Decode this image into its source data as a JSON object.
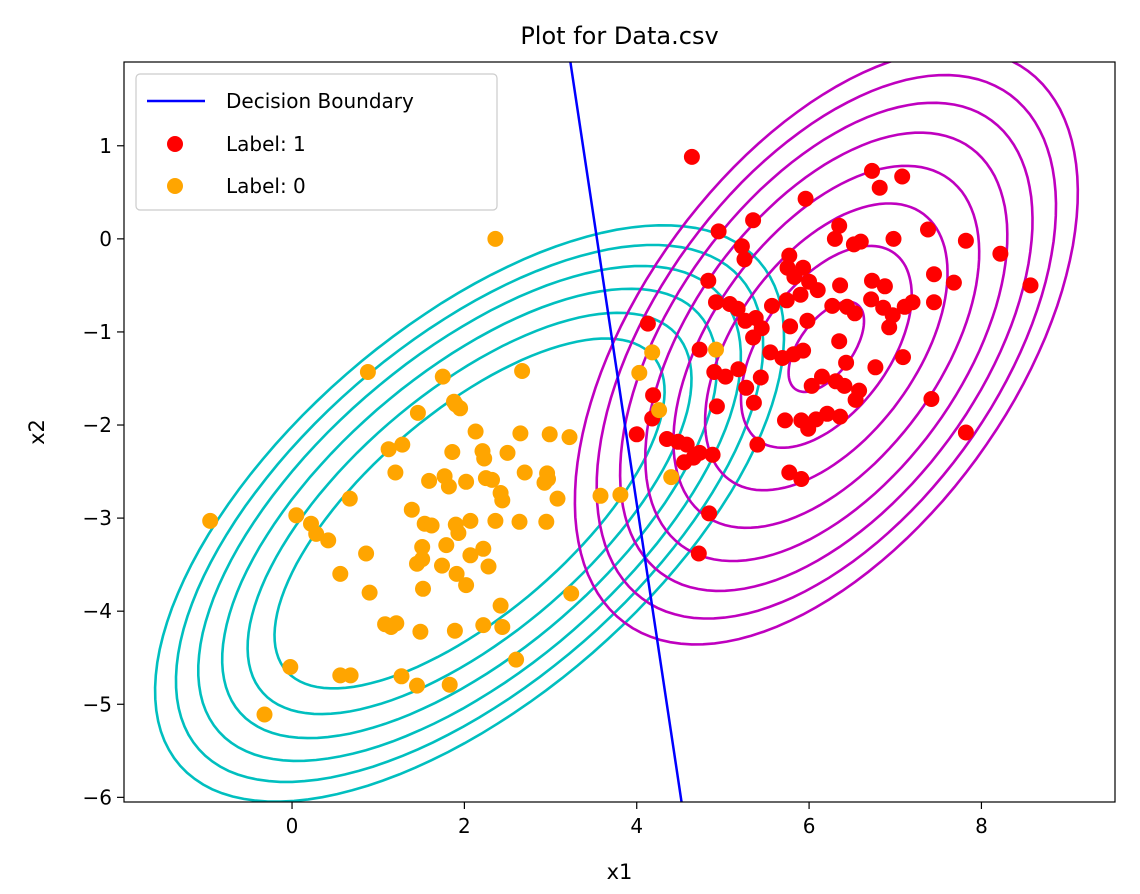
{
  "chart_data": {
    "type": "scatter",
    "title": "Plot for Data.csv",
    "xlabel": "x1",
    "ylabel": "x2",
    "xlim": [
      -1.95,
      9.55
    ],
    "ylim": [
      -6.05,
      1.9
    ],
    "xticks": [
      0,
      2,
      4,
      6,
      8
    ],
    "yticks": [
      -6,
      -5,
      -4,
      -3,
      -2,
      -1,
      0,
      1
    ],
    "grid": false,
    "legend_position": "top-left",
    "legend": [
      {
        "label": "Decision Boundary",
        "kind": "line",
        "color": "#0000ff"
      },
      {
        "label": "Label: 1",
        "kind": "marker",
        "color": "#ff0000"
      },
      {
        "label": "Label: 0",
        "kind": "marker",
        "color": "#ffa500"
      }
    ],
    "decision_boundary": {
      "color": "#0000ff",
      "points": [
        [
          3.23,
          1.9
        ],
        [
          4.52,
          -6.05
        ]
      ]
    },
    "contours": [
      {
        "name": "label-0-gaussian",
        "color": "#00bfbf",
        "center": [
          2.06,
          -2.95
        ],
        "levels": [
          {
            "rx": 2.72,
            "ry": 1.12,
            "angle_deg": 37.5
          },
          {
            "rx": 3.08,
            "ry": 1.34,
            "angle_deg": 37.5
          },
          {
            "rx": 3.42,
            "ry": 1.54,
            "angle_deg": 37.5
          },
          {
            "rx": 3.74,
            "ry": 1.73,
            "angle_deg": 37.5
          },
          {
            "rx": 4.04,
            "ry": 1.9,
            "angle_deg": 37.5
          },
          {
            "rx": 4.32,
            "ry": 2.06,
            "angle_deg": 37.5
          }
        ]
      },
      {
        "name": "label-1-gaussian",
        "color": "#bf00bf",
        "center": [
          6.2,
          -1.16
        ],
        "levels": [
          {
            "rx": 0.58,
            "ry": 0.3,
            "angle_deg": 50
          },
          {
            "rx": 1.28,
            "ry": 0.72,
            "angle_deg": 50
          },
          {
            "rx": 1.82,
            "ry": 1.02,
            "angle_deg": 50
          },
          {
            "rx": 2.3,
            "ry": 1.28,
            "angle_deg": 50
          },
          {
            "rx": 2.72,
            "ry": 1.52,
            "angle_deg": 50
          },
          {
            "rx": 3.1,
            "ry": 1.73,
            "angle_deg": 50
          },
          {
            "rx": 3.45,
            "ry": 1.93,
            "angle_deg": 50
          },
          {
            "rx": 3.78,
            "ry": 2.11,
            "angle_deg": 50
          }
        ]
      }
    ],
    "series": [
      {
        "name": "Label: 1",
        "color": "#ff0000",
        "points": [
          [
            4.64,
            0.88
          ],
          [
            5.96,
            0.43
          ],
          [
            6.73,
            0.73
          ],
          [
            7.08,
            0.67
          ],
          [
            6.82,
            0.55
          ],
          [
            4.95,
            0.08
          ],
          [
            5.35,
            0.2
          ],
          [
            6.35,
            0.14
          ],
          [
            6.3,
            0.0
          ],
          [
            6.6,
            -0.03
          ],
          [
            6.98,
            0.0
          ],
          [
            7.38,
            0.1
          ],
          [
            7.82,
            -0.02
          ],
          [
            8.22,
            -0.16
          ],
          [
            8.57,
            -0.5
          ],
          [
            5.22,
            -0.08
          ],
          [
            5.25,
            -0.22
          ],
          [
            5.77,
            -0.18
          ],
          [
            5.75,
            -0.31
          ],
          [
            5.93,
            -0.31
          ],
          [
            6.52,
            -0.06
          ],
          [
            6.73,
            -0.45
          ],
          [
            5.83,
            -0.41
          ],
          [
            6.0,
            -0.46
          ],
          [
            6.36,
            -0.5
          ],
          [
            6.88,
            -0.51
          ],
          [
            7.45,
            -0.38
          ],
          [
            7.68,
            -0.47
          ],
          [
            4.83,
            -0.45
          ],
          [
            4.92,
            -0.68
          ],
          [
            5.08,
            -0.7
          ],
          [
            5.17,
            -0.75
          ],
          [
            5.26,
            -0.88
          ],
          [
            5.38,
            -0.85
          ],
          [
            5.45,
            -0.96
          ],
          [
            5.57,
            -0.72
          ],
          [
            5.74,
            -0.66
          ],
          [
            5.9,
            -0.6
          ],
          [
            6.1,
            -0.55
          ],
          [
            6.27,
            -0.72
          ],
          [
            6.44,
            -0.73
          ],
          [
            6.53,
            -0.8
          ],
          [
            6.72,
            -0.65
          ],
          [
            6.86,
            -0.74
          ],
          [
            6.97,
            -0.82
          ],
          [
            7.11,
            -0.73
          ],
          [
            7.2,
            -0.68
          ],
          [
            7.45,
            -0.68
          ],
          [
            5.35,
            -1.06
          ],
          [
            5.55,
            -1.22
          ],
          [
            5.69,
            -1.28
          ],
          [
            5.78,
            -0.94
          ],
          [
            5.98,
            -0.88
          ],
          [
            5.82,
            -1.24
          ],
          [
            5.93,
            -1.2
          ],
          [
            6.35,
            -1.1
          ],
          [
            6.43,
            -1.33
          ],
          [
            6.15,
            -1.48
          ],
          [
            6.03,
            -1.58
          ],
          [
            6.31,
            -1.53
          ],
          [
            6.41,
            -1.58
          ],
          [
            6.58,
            -1.63
          ],
          [
            6.54,
            -1.73
          ],
          [
            6.77,
            -1.38
          ],
          [
            6.93,
            -0.95
          ],
          [
            7.09,
            -1.27
          ],
          [
            4.73,
            -1.19
          ],
          [
            4.9,
            -1.43
          ],
          [
            5.03,
            -1.48
          ],
          [
            5.18,
            -1.4
          ],
          [
            5.27,
            -1.6
          ],
          [
            5.44,
            -1.49
          ],
          [
            4.93,
            -1.8
          ],
          [
            5.36,
            -1.76
          ],
          [
            5.72,
            -1.95
          ],
          [
            5.91,
            -1.95
          ],
          [
            6.08,
            -1.94
          ],
          [
            6.21,
            -1.88
          ],
          [
            6.36,
            -1.91
          ],
          [
            5.99,
            -2.04
          ],
          [
            4.13,
            -0.91
          ],
          [
            4.19,
            -1.68
          ],
          [
            4.18,
            -1.93
          ],
          [
            4.0,
            -2.1
          ],
          [
            4.35,
            -2.15
          ],
          [
            4.48,
            -2.18
          ],
          [
            4.58,
            -2.21
          ],
          [
            4.73,
            -2.3
          ],
          [
            4.88,
            -2.32
          ],
          [
            5.4,
            -2.21
          ],
          [
            4.66,
            -2.35
          ],
          [
            4.55,
            -2.4
          ],
          [
            5.77,
            -2.51
          ],
          [
            5.91,
            -2.58
          ],
          [
            4.84,
            -2.95
          ],
          [
            4.72,
            -3.38
          ],
          [
            7.42,
            -1.72
          ],
          [
            7.82,
            -2.08
          ]
        ]
      },
      {
        "name": "Label: 0",
        "color": "#ffa500",
        "points": [
          [
            2.36,
            0.0
          ],
          [
            4.92,
            -1.19
          ],
          [
            4.18,
            -1.22
          ],
          [
            4.03,
            -1.44
          ],
          [
            4.26,
            -1.84
          ],
          [
            4.4,
            -2.56
          ],
          [
            3.81,
            -2.75
          ],
          [
            0.88,
            -1.43
          ],
          [
            1.75,
            -1.48
          ],
          [
            1.46,
            -1.87
          ],
          [
            1.88,
            -1.75
          ],
          [
            1.95,
            -1.82
          ],
          [
            1.9,
            -1.78
          ],
          [
            2.13,
            -2.07
          ],
          [
            2.67,
            -1.42
          ],
          [
            3.22,
            -2.13
          ],
          [
            2.99,
            -2.1
          ],
          [
            1.12,
            -2.26
          ],
          [
            1.28,
            -2.21
          ],
          [
            1.86,
            -2.29
          ],
          [
            2.21,
            -2.28
          ],
          [
            2.23,
            -2.36
          ],
          [
            2.65,
            -2.09
          ],
          [
            2.5,
            -2.3
          ],
          [
            1.2,
            -2.51
          ],
          [
            1.59,
            -2.6
          ],
          [
            1.77,
            -2.55
          ],
          [
            1.82,
            -2.66
          ],
          [
            2.02,
            -2.61
          ],
          [
            2.25,
            -2.57
          ],
          [
            2.32,
            -2.59
          ],
          [
            2.42,
            -2.73
          ],
          [
            2.44,
            -2.81
          ],
          [
            2.7,
            -2.51
          ],
          [
            2.97,
            -2.58
          ],
          [
            3.08,
            -2.79
          ],
          [
            3.58,
            -2.76
          ],
          [
            0.67,
            -2.79
          ],
          [
            1.39,
            -2.91
          ],
          [
            1.54,
            -3.06
          ],
          [
            1.62,
            -3.08
          ],
          [
            1.9,
            -3.07
          ],
          [
            2.07,
            -3.03
          ],
          [
            2.36,
            -3.03
          ],
          [
            2.64,
            -3.04
          ],
          [
            2.95,
            -3.04
          ],
          [
            0.05,
            -2.97
          ],
          [
            0.22,
            -3.06
          ],
          [
            0.28,
            -3.17
          ],
          [
            0.42,
            -3.24
          ],
          [
            1.51,
            -3.31
          ],
          [
            1.79,
            -3.29
          ],
          [
            1.93,
            -3.16
          ],
          [
            1.51,
            -3.44
          ],
          [
            1.45,
            -3.49
          ],
          [
            1.74,
            -3.51
          ],
          [
            2.07,
            -3.4
          ],
          [
            2.22,
            -3.33
          ],
          [
            0.86,
            -3.38
          ],
          [
            0.56,
            -3.6
          ],
          [
            2.02,
            -3.72
          ],
          [
            1.91,
            -3.6
          ],
          [
            2.28,
            -3.52
          ],
          [
            1.52,
            -3.76
          ],
          [
            0.9,
            -3.8
          ],
          [
            3.24,
            -3.81
          ],
          [
            2.42,
            -3.94
          ],
          [
            2.22,
            -4.15
          ],
          [
            2.44,
            -4.17
          ],
          [
            1.08,
            -4.14
          ],
          [
            1.15,
            -4.17
          ],
          [
            1.21,
            -4.13
          ],
          [
            1.49,
            -4.22
          ],
          [
            1.89,
            -4.21
          ],
          [
            -0.95,
            -3.03
          ],
          [
            -0.02,
            -4.6
          ],
          [
            0.56,
            -4.69
          ],
          [
            0.68,
            -4.69
          ],
          [
            1.27,
            -4.7
          ],
          [
            1.45,
            -4.8
          ],
          [
            1.83,
            -4.79
          ],
          [
            2.6,
            -4.52
          ],
          [
            -0.32,
            -5.11
          ],
          [
            2.96,
            -2.52
          ],
          [
            2.93,
            -2.62
          ]
        ]
      }
    ]
  }
}
